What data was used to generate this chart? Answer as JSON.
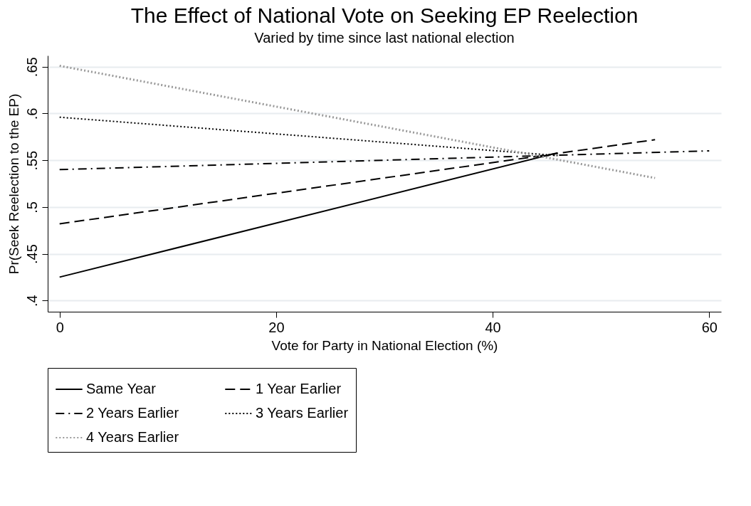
{
  "chart_data": {
    "type": "line",
    "title": "The Effect of National Vote on Seeking EP Reelection",
    "subtitle": "Varied by time since last national election",
    "xlabel": "Vote for Party in National Election (%)",
    "ylabel": "Pr(Seek Reelection to the EP)",
    "xlim": [
      -1.1,
      61.1
    ],
    "xticks": [
      0,
      20,
      40,
      60
    ],
    "ylim": [
      0.388,
      0.662
    ],
    "yticks": [
      {
        "value": 0.4,
        "label": ".4"
      },
      {
        "value": 0.45,
        "label": ".45"
      },
      {
        "value": 0.5,
        "label": ".5"
      },
      {
        "value": 0.55,
        "label": ".55"
      },
      {
        "value": 0.6,
        "label": ".6"
      },
      {
        "value": 0.65,
        "label": ".65"
      }
    ],
    "grid": "y",
    "legend": "bottom",
    "marker": "none",
    "series": [
      {
        "name": "Same Year",
        "color": "#000000",
        "line_style": "solid",
        "x": [
          0,
          46
        ],
        "values": [
          0.425,
          0.558
        ]
      },
      {
        "name": "1 Year Earlier",
        "color": "#000000",
        "line_style": "dashed",
        "x": [
          0,
          55
        ],
        "values": [
          0.482,
          0.572
        ]
      },
      {
        "name": "2 Years Earlier",
        "color": "#000000",
        "line_style": "dashdot",
        "x": [
          0,
          60
        ],
        "values": [
          0.54,
          0.56
        ]
      },
      {
        "name": "3 Years Earlier",
        "color": "#000000",
        "line_style": "dotted",
        "x": [
          0,
          46
        ],
        "values": [
          0.596,
          0.555
        ]
      },
      {
        "name": "4 Years Earlier",
        "color": "#999999",
        "line_style": "dotted",
        "x": [
          0,
          55
        ],
        "values": [
          0.651,
          0.531
        ]
      }
    ]
  }
}
